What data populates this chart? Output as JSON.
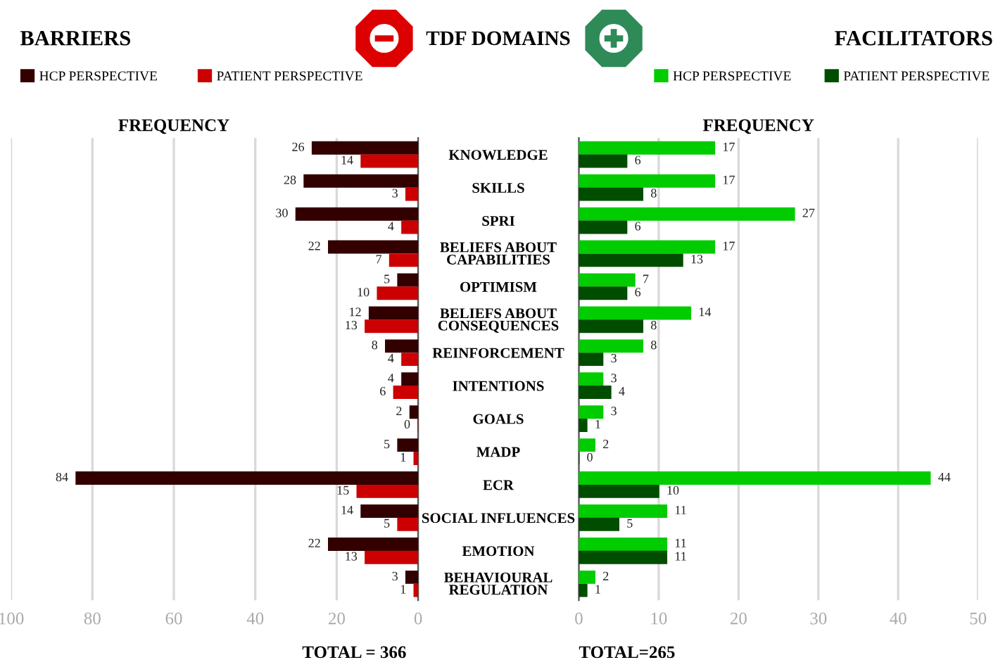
{
  "chart_data": [
    {
      "type": "bar",
      "orientation": "horizontal",
      "title": "BARRIERS",
      "xlabel": "FREQUENCY",
      "categories": [
        "KNOWLEDGE",
        "SKILLS",
        "SPRI",
        "BELIEFS ABOUT\nCAPABILITIES",
        "OPTIMISM",
        "BELIEFS ABOUT\nCONSEQUENCES",
        "REINFORCEMENT",
        "INTENTIONS",
        "GOALS",
        "MADP",
        "ECR",
        "SOCIAL INFLUENCES",
        "EMOTION",
        "BEHAVIOURAL\nREGULATION"
      ],
      "series": [
        {
          "name": "HCP PERSPECTIVE",
          "color": "#330000",
          "values": [
            26,
            28,
            30,
            22,
            5,
            12,
            8,
            4,
            2,
            5,
            84,
            14,
            22,
            3
          ]
        },
        {
          "name": "PATIENT PERSPECTIVE",
          "color": "#cc0000",
          "values": [
            14,
            3,
            4,
            7,
            10,
            13,
            4,
            6,
            0,
            1,
            15,
            5,
            13,
            1
          ]
        }
      ],
      "xlim": [
        100,
        0
      ],
      "xticks": [
        100,
        80,
        60,
        40,
        20,
        0
      ],
      "grid": "x",
      "legend": "top left",
      "data_labels": true,
      "annotations": [
        "TDF DOMAINS",
        "TOTAL = 366"
      ]
    },
    {
      "type": "bar",
      "orientation": "horizontal",
      "title": "FACILITATORS",
      "xlabel": "FREQUENCY",
      "categories": [
        null,
        null,
        null,
        null,
        null,
        null,
        null,
        null,
        null,
        null,
        null,
        null,
        null,
        null
      ],
      "series": [
        {
          "name": "HCP PERSPECTIVE",
          "color": "#00cc00",
          "values": [
            17,
            17,
            27,
            17,
            7,
            14,
            8,
            3,
            3,
            2,
            44,
            11,
            11,
            2
          ]
        },
        {
          "name": "PATIENT PERSPECTIVE",
          "color": "#004d00",
          "values": [
            6,
            8,
            6,
            13,
            6,
            8,
            3,
            4,
            1,
            0,
            10,
            5,
            11,
            1
          ]
        }
      ],
      "xlim": [
        0,
        50
      ],
      "xticks": [
        0,
        10,
        20,
        30,
        40,
        50
      ],
      "grid": "x",
      "legend": "top right",
      "data_labels": true,
      "tick_labels": "x",
      "annotations": [
        "TOTAL=265"
      ]
    }
  ]
}
